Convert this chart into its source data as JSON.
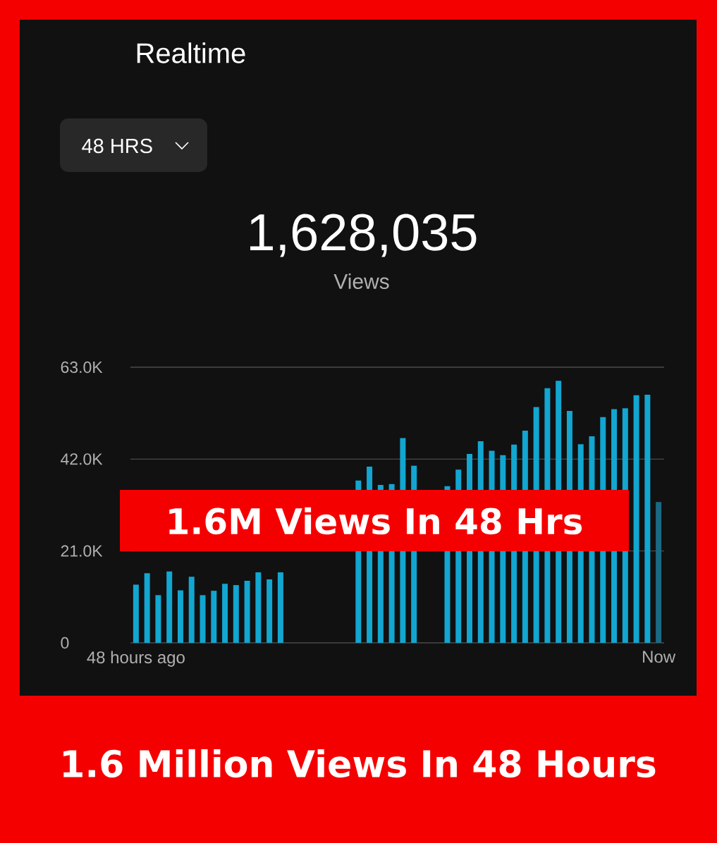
{
  "chart_data": {
    "type": "bar",
    "title": "Realtime",
    "annotations": [
      "48 HRS",
      "1,628,035",
      "Views",
      "1.6M Views In 48 Hrs",
      "1.6 Million Views In 48 Hours"
    ],
    "categories": [
      "48 hours ago",
      null,
      null,
      null,
      null,
      null,
      null,
      null,
      null,
      null,
      null,
      null,
      null,
      null,
      null,
      null,
      null,
      null,
      null,
      null,
      null,
      null,
      null,
      null,
      null,
      null,
      null,
      null,
      null,
      null,
      null,
      null,
      null,
      null,
      null,
      null,
      null,
      null,
      null,
      null,
      null,
      null,
      null,
      null,
      null,
      null,
      null,
      "Now"
    ],
    "values": [
      13300,
      15900,
      10900,
      16300,
      12000,
      15100,
      10900,
      11900,
      13500,
      13200,
      14200,
      16100,
      14500,
      16100,
      null,
      null,
      null,
      null,
      null,
      null,
      37100,
      40300,
      36100,
      36300,
      46800,
      40500,
      null,
      null,
      35800,
      39600,
      43200,
      46100,
      43900,
      42900,
      45300,
      48500,
      53900,
      58200,
      59900,
      53000,
      45400,
      47200,
      51600,
      53400,
      53600,
      56600,
      56700,
      32200
    ],
    "colors": [
      "#12a6d0",
      "#12a6d0",
      "#12a6d0",
      "#12a6d0",
      "#12a6d0",
      "#12a6d0",
      "#12a6d0",
      "#12a6d0",
      "#12a6d0",
      "#12a6d0",
      "#12a6d0",
      "#12a6d0",
      "#12a6d0",
      "#12a6d0",
      "#12a6d0",
      "#12a6d0",
      "#12a6d0",
      "#12a6d0",
      "#12a6d0",
      "#12a6d0",
      "#12a6d0",
      "#12a6d0",
      "#12a6d0",
      "#12a6d0",
      "#12a6d0",
      "#12a6d0",
      "#12a6d0",
      "#12a6d0",
      "#12a6d0",
      "#12a6d0",
      "#12a6d0",
      "#12a6d0",
      "#12a6d0",
      "#12a6d0",
      "#12a6d0",
      "#12a6d0",
      "#12a6d0",
      "#12a6d0",
      "#12a6d0",
      "#12a6d0",
      "#12a6d0",
      "#12a6d0",
      "#12a6d0",
      "#12a6d0",
      "#12a6d0",
      "#12a6d0",
      "#12a6d0",
      "#1b6a84"
    ],
    "ylim": [
      0,
      63000
    ],
    "yticks": [
      {
        "value": 0,
        "label": "0"
      },
      {
        "value": 21000,
        "label": "21.0K"
      },
      {
        "value": 42000,
        "label": "42.0K"
      },
      {
        "value": 63000,
        "label": "63.0K"
      }
    ],
    "grid": "y"
  }
}
